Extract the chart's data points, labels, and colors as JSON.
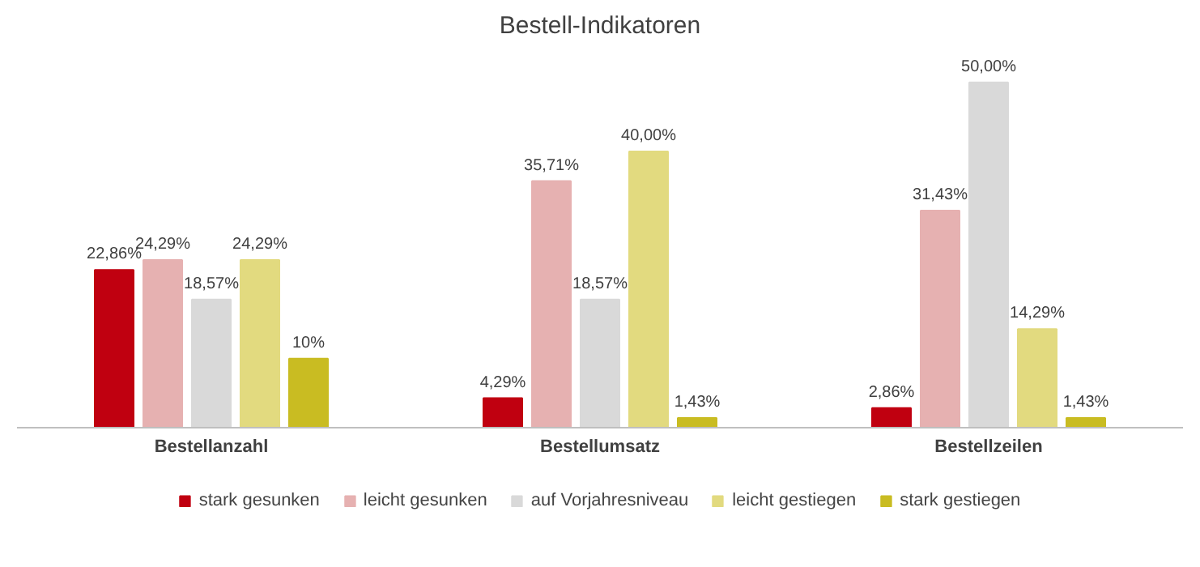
{
  "chart_data": {
    "type": "bar",
    "title": "Bestell-Indikatoren",
    "categories": [
      "Bestellanzahl",
      "Bestellumsatz",
      "Bestellzeilen"
    ],
    "series": [
      {
        "name": "stark gesunken",
        "color": "#c00010",
        "values": [
          22.86,
          4.29,
          2.86
        ],
        "value_labels": [
          "22,86%",
          "4,29%",
          "2,86%"
        ]
      },
      {
        "name": "leicht gesunken",
        "color": "#e6b1b1",
        "values": [
          24.29,
          35.71,
          31.43
        ],
        "value_labels": [
          "24,29%",
          "35,71%",
          "31,43%"
        ]
      },
      {
        "name": "auf Vorjahresniveau",
        "color": "#d9d9d9",
        "values": [
          18.57,
          18.57,
          50.0
        ],
        "value_labels": [
          "18,57%",
          "18,57%",
          "50,00%"
        ]
      },
      {
        "name": "leicht gestiegen",
        "color": "#e2da7f",
        "values": [
          24.29,
          40.0,
          14.29
        ],
        "value_labels": [
          "24,29%",
          "40,00%",
          "14,29%"
        ]
      },
      {
        "name": "stark gestiegen",
        "color": "#c9bc22",
        "values": [
          10,
          1.43,
          1.43
        ],
        "value_labels": [
          "10%",
          "1,43%",
          "1,43%"
        ]
      }
    ],
    "legend": "bottom"
  }
}
